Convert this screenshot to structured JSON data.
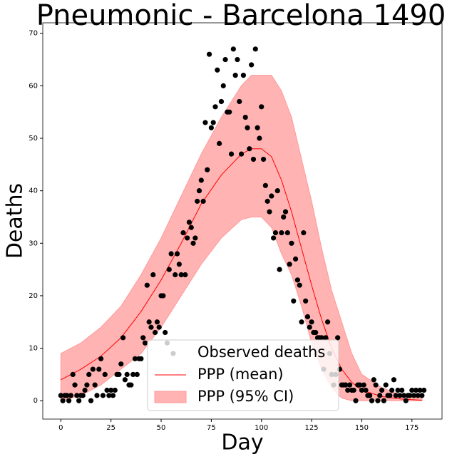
{
  "chart_data": {
    "type": "scatter",
    "title": "Pneumonic - Barcelona 1490",
    "xlabel": "Day",
    "ylabel": "Deaths",
    "xlim": [
      -9,
      190
    ],
    "ylim": [
      -3.5,
      72
    ],
    "xticks": [
      0,
      25,
      50,
      75,
      100,
      125,
      150,
      175
    ],
    "yticks": [
      0,
      10,
      20,
      30,
      40,
      50,
      60,
      70
    ],
    "legend": "lower center",
    "series": [
      {
        "name": "Observed deaths",
        "kind": "scatter",
        "color": "#000000",
        "x": [
          0,
          1,
          2,
          3,
          4,
          5,
          6,
          7,
          8,
          9,
          10,
          11,
          12,
          13,
          14,
          15,
          16,
          17,
          18,
          19,
          20,
          21,
          22,
          23,
          24,
          25,
          26,
          27,
          28,
          29,
          30,
          31,
          32,
          33,
          34,
          35,
          36,
          37,
          38,
          39,
          40,
          41,
          42,
          43,
          44,
          45,
          46,
          47,
          48,
          49,
          50,
          51,
          52,
          53,
          54,
          55,
          56,
          57,
          58,
          59,
          60,
          61,
          62,
          63,
          64,
          65,
          66,
          67,
          68,
          69,
          70,
          71,
          72,
          73,
          74,
          75,
          76,
          77,
          78,
          79,
          80,
          81,
          82,
          83,
          84,
          85,
          86,
          87,
          88,
          89,
          90,
          91,
          92,
          93,
          94,
          95,
          96,
          97,
          98,
          99,
          100,
          101,
          102,
          103,
          104,
          105,
          106,
          107,
          108,
          109,
          110,
          111,
          112,
          113,
          114,
          115,
          116,
          117,
          118,
          119,
          120,
          121,
          122,
          123,
          124,
          125,
          126,
          127,
          128,
          129,
          130,
          131,
          132,
          133,
          134,
          135,
          136,
          137,
          138,
          139,
          140,
          141,
          142,
          143,
          144,
          145,
          146,
          147,
          148,
          149,
          150,
          151,
          152,
          153,
          154,
          155,
          156,
          157,
          158,
          159,
          160,
          161,
          162,
          163,
          164,
          165,
          166,
          167,
          168,
          169,
          170,
          171,
          172,
          173,
          174,
          175,
          176,
          177,
          178,
          179,
          180,
          181
        ],
        "values": [
          1,
          0,
          1,
          1,
          0,
          1,
          5,
          3,
          1,
          0,
          1,
          1,
          2,
          3,
          5,
          0,
          6,
          3,
          1,
          6,
          8,
          1,
          5,
          2,
          1,
          2,
          1,
          2,
          5,
          5,
          7,
          12,
          4,
          5,
          3,
          3,
          5,
          8,
          5,
          8,
          8,
          12,
          11,
          22,
          15,
          14,
          24,
          13,
          15,
          14,
          20,
          20,
          13,
          11,
          25,
          28,
          9,
          24,
          28,
          26,
          24,
          32,
          24,
          31,
          34,
          33,
          30,
          31,
          38,
          40,
          42,
          38,
          53,
          44,
          66,
          52,
          53,
          56,
          63,
          49,
          57,
          60,
          65,
          55,
          55,
          47,
          67,
          62,
          65,
          57,
          47,
          62,
          54,
          52,
          48,
          64,
          46,
          67,
          52,
          50,
          56,
          46,
          41,
          38,
          36,
          39,
          31,
          32,
          40,
          25,
          32,
          35,
          36,
          32,
          26,
          30,
          19,
          27,
          23,
          22,
          15,
          32,
          19,
          16,
          14,
          15,
          13,
          13,
          12,
          12,
          12,
          6,
          12,
          15,
          9,
          5,
          3,
          5,
          12,
          6,
          3,
          3,
          3,
          2,
          3,
          2,
          2,
          0,
          3,
          3,
          2,
          3,
          2,
          1,
          1,
          0,
          4,
          3,
          0,
          1,
          2,
          0,
          3,
          1,
          1,
          2,
          4,
          1,
          2,
          1,
          2,
          1,
          0,
          1,
          1,
          2,
          1,
          2,
          1,
          2,
          1,
          2
        ]
      },
      {
        "name": "PPP (mean)",
        "kind": "line",
        "color": "#ff0000",
        "x": [
          0,
          10,
          20,
          30,
          40,
          50,
          60,
          70,
          80,
          90,
          95,
          100,
          105,
          110,
          115,
          120,
          125,
          130,
          135,
          140,
          145,
          150,
          160,
          170,
          180
        ],
        "values": [
          4,
          6,
          8.5,
          12,
          17,
          23,
          30,
          37.5,
          43,
          47,
          48,
          48,
          46.5,
          42,
          36,
          29,
          22,
          15.5,
          10,
          6,
          3.5,
          2,
          0.8,
          0.3,
          0.1
        ]
      },
      {
        "name": "PPP (95% CI)",
        "kind": "band",
        "color": "#ff9999",
        "x": [
          0,
          10,
          20,
          30,
          40,
          50,
          60,
          70,
          80,
          90,
          95,
          100,
          105,
          110,
          115,
          120,
          125,
          130,
          135,
          140,
          145,
          150,
          160,
          170,
          180
        ],
        "lower": [
          0,
          1,
          3,
          6,
          9,
          14,
          20,
          26,
          31,
          34.5,
          35,
          35,
          33,
          28,
          24,
          18,
          11,
          6,
          2.5,
          0.5,
          0,
          0,
          0,
          0,
          0
        ],
        "upper": [
          9,
          11,
          14,
          18,
          24,
          31,
          39,
          47,
          54,
          60,
          62,
          62,
          62,
          59,
          54,
          46,
          38,
          29,
          21,
          15,
          9,
          5,
          2.5,
          1,
          0.5
        ]
      }
    ]
  }
}
